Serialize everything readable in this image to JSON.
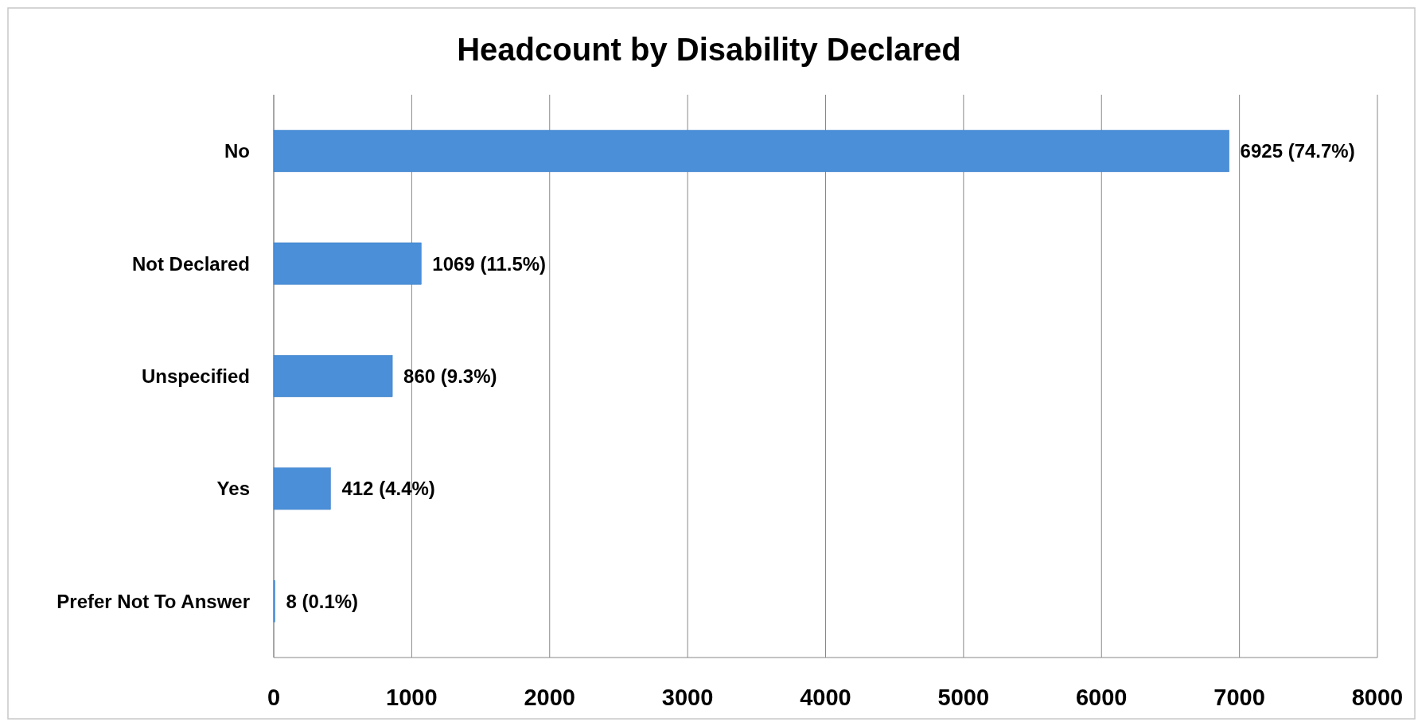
{
  "chart_data": {
    "type": "bar",
    "orientation": "horizontal",
    "title": "Headcount by Disability Declared",
    "categories": [
      "No",
      "Not Declared",
      "Unspecified",
      "Yes",
      "Prefer Not To Answer"
    ],
    "values": [
      6925,
      1069,
      860,
      412,
      8
    ],
    "value_labels": [
      "6925 (74.7%)",
      "1069 (11.5%)",
      "860 (9.3%)",
      "412 (4.4%)",
      "8 (0.1%)"
    ],
    "color": "#4a8fd8",
    "xlim": [
      0,
      8000
    ],
    "xticks": [
      0,
      1000,
      2000,
      3000,
      4000,
      5000,
      6000,
      7000,
      8000
    ],
    "grid": "x"
  }
}
